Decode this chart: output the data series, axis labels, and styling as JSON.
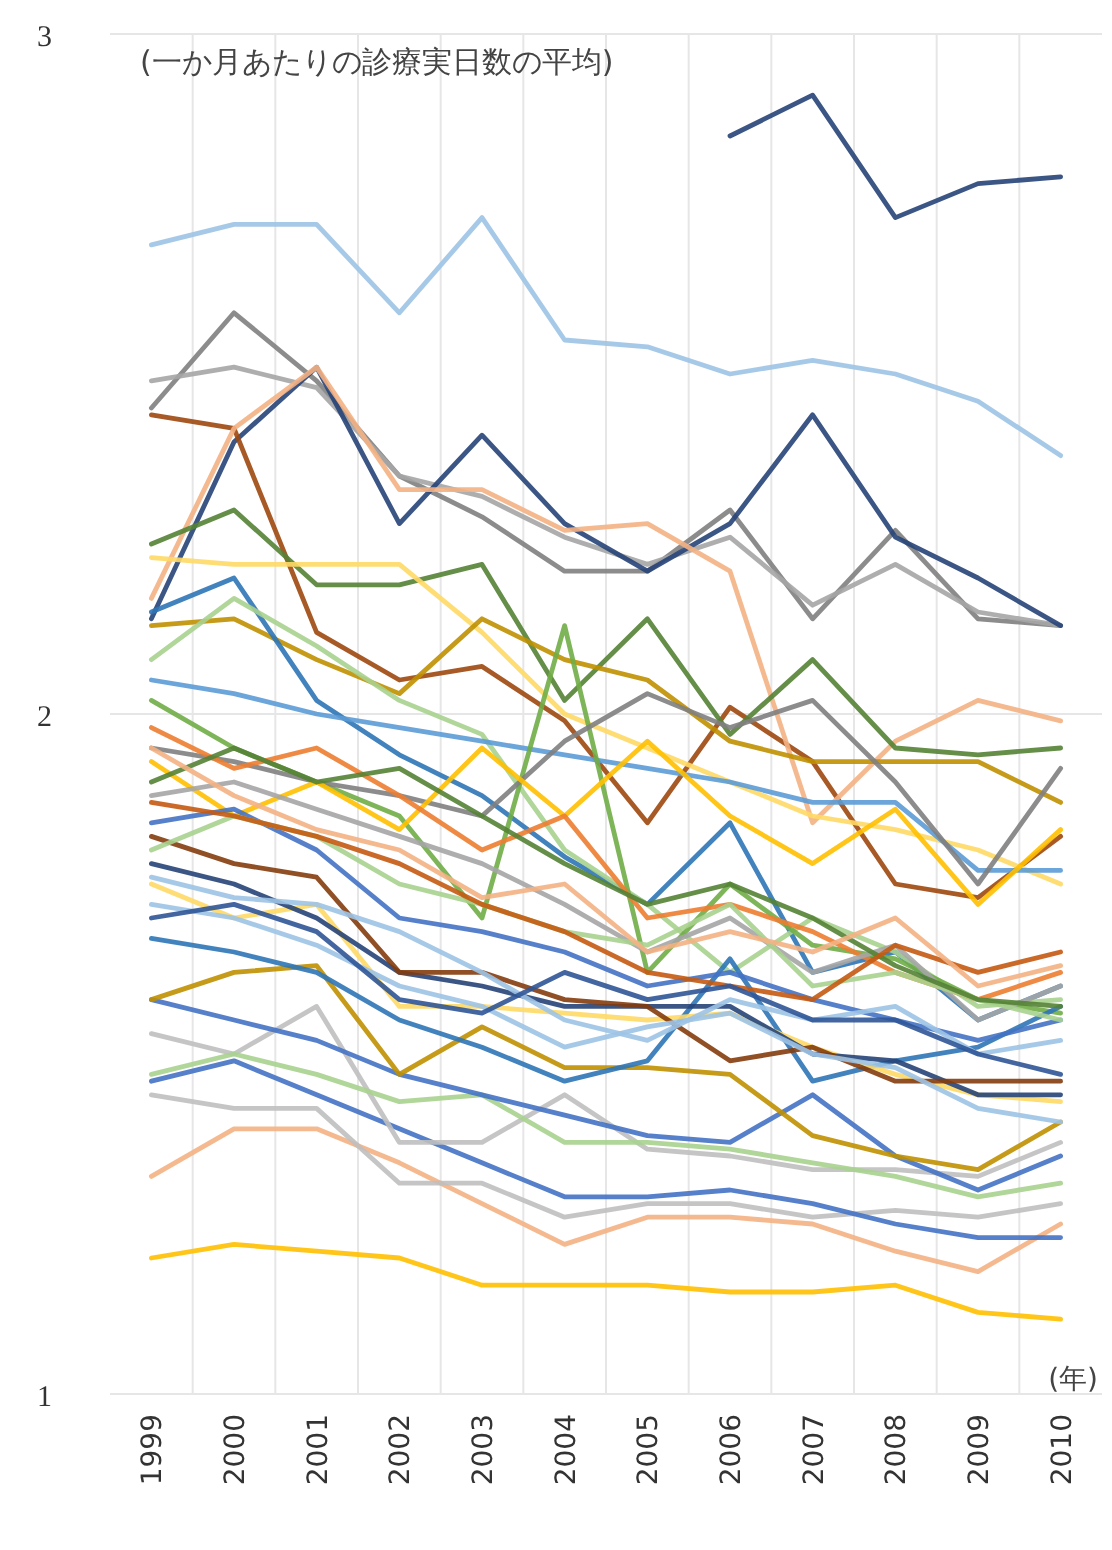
{
  "chart_data": {
    "type": "line",
    "annotations": [
      "(一か月あたりの診療実日数の平均)",
      "(年)"
    ],
    "categories": [
      "1999",
      "2000",
      "2001",
      "2002",
      "2003",
      "2004",
      "2005",
      "2006",
      "2007",
      "2008",
      "2009",
      "2010"
    ],
    "ylim": [
      1,
      3
    ],
    "yticks": [
      1,
      2,
      3
    ],
    "grid": true,
    "marker": "none",
    "line_style": "solid",
    "series": [
      {
        "color": "#264478",
        "values": [
          null,
          null,
          null,
          null,
          null,
          null,
          null,
          2.85,
          2.91,
          2.73,
          2.78,
          2.79
        ]
      },
      {
        "color": "#9DC3E6",
        "values": [
          2.69,
          2.72,
          2.72,
          2.59,
          2.73,
          2.55,
          2.54,
          2.5,
          2.52,
          2.5,
          2.46,
          2.38
        ]
      },
      {
        "color": "#7F7F7F",
        "values": [
          2.45,
          2.59,
          2.49,
          2.35,
          2.29,
          2.21,
          2.21,
          2.3,
          2.14,
          2.27,
          2.14,
          2.13
        ]
      },
      {
        "color": "#A5A5A5",
        "values": [
          2.49,
          2.51,
          2.48,
          2.35,
          2.32,
          2.26,
          2.22,
          2.26,
          2.16,
          2.22,
          2.15,
          2.13
        ]
      },
      {
        "color": "#264478",
        "values": [
          2.14,
          2.4,
          2.51,
          2.28,
          2.41,
          2.28,
          2.21,
          2.28,
          2.44,
          2.26,
          2.2,
          2.13
        ]
      },
      {
        "color": "#9E480E",
        "values": [
          2.44,
          2.42,
          2.12,
          2.05,
          2.07,
          1.99,
          1.84,
          2.01,
          1.93,
          1.75,
          1.73,
          1.82
        ]
      },
      {
        "color": "#F4B183",
        "values": [
          2.17,
          2.42,
          2.51,
          2.33,
          2.33,
          2.27,
          2.28,
          2.21,
          1.84,
          1.96,
          2.02,
          1.99
        ]
      },
      {
        "color": "#548235",
        "values": [
          2.25,
          2.3,
          2.19,
          2.19,
          2.22,
          2.02,
          2.14,
          1.97,
          2.08,
          1.95,
          1.94,
          1.95
        ]
      },
      {
        "color": "#FFD966",
        "values": [
          2.23,
          2.22,
          2.22,
          2.22,
          2.12,
          2.0,
          1.95,
          1.9,
          1.85,
          1.83,
          1.8,
          1.75
        ]
      },
      {
        "color": "#BF9000",
        "values": [
          2.13,
          2.14,
          2.08,
          2.03,
          2.14,
          2.08,
          2.05,
          1.96,
          1.93,
          1.93,
          1.93,
          1.87
        ]
      },
      {
        "color": "#2E75B6",
        "values": [
          2.15,
          2.2,
          2.02,
          1.94,
          1.88,
          1.79,
          1.72,
          1.84,
          1.62,
          1.65,
          1.55,
          1.6
        ]
      },
      {
        "color": "#A9D18E",
        "values": [
          2.08,
          2.17,
          2.1,
          2.02,
          1.97,
          1.8,
          1.72,
          1.62,
          1.7,
          1.65,
          1.57,
          1.58
        ]
      },
      {
        "color": "#5B9BD5",
        "values": [
          2.05,
          2.03,
          2.0,
          1.98,
          1.96,
          1.94,
          1.92,
          1.9,
          1.87,
          1.87,
          1.77,
          1.77
        ]
      },
      {
        "color": "#70AD47",
        "values": [
          2.02,
          1.95,
          1.9,
          1.85,
          1.7,
          2.13,
          1.62,
          1.75,
          1.66,
          1.64,
          1.58,
          1.56
        ]
      },
      {
        "color": "#7F7F7F",
        "values": [
          1.95,
          1.93,
          1.9,
          1.88,
          1.85,
          1.96,
          2.03,
          1.98,
          2.02,
          1.9,
          1.75,
          1.92
        ]
      },
      {
        "color": "#FFC000",
        "values": [
          1.93,
          1.85,
          1.9,
          1.83,
          1.95,
          1.85,
          1.96,
          1.85,
          1.78,
          1.86,
          1.72,
          1.83
        ]
      },
      {
        "color": "#FFC000",
        "values": [
          1.2,
          1.22,
          1.21,
          1.2,
          1.16,
          1.16,
          1.16,
          1.15,
          1.15,
          1.16,
          1.12,
          1.11
        ]
      },
      {
        "color": "#F4B183",
        "values": [
          1.32,
          1.39,
          1.39,
          1.34,
          1.28,
          1.22,
          1.26,
          1.26,
          1.25,
          1.21,
          1.18,
          1.25
        ]
      },
      {
        "color": "#BFBFBF",
        "values": [
          1.44,
          1.42,
          1.42,
          1.31,
          1.31,
          1.26,
          1.28,
          1.28,
          1.26,
          1.27,
          1.26,
          1.28
        ]
      },
      {
        "color": "#4472C4",
        "values": [
          1.46,
          1.49,
          1.44,
          1.39,
          1.34,
          1.29,
          1.29,
          1.3,
          1.28,
          1.25,
          1.23,
          1.23
        ]
      },
      {
        "color": "#BFBFBF",
        "values": [
          1.53,
          1.5,
          1.57,
          1.37,
          1.37,
          1.44,
          1.36,
          1.35,
          1.33,
          1.33,
          1.32,
          1.37
        ]
      },
      {
        "color": "#A9D18E",
        "values": [
          1.47,
          1.5,
          1.47,
          1.43,
          1.44,
          1.37,
          1.37,
          1.36,
          1.34,
          1.32,
          1.29,
          1.31
        ]
      },
      {
        "color": "#4472C4",
        "values": [
          1.58,
          1.55,
          1.52,
          1.47,
          1.44,
          1.41,
          1.38,
          1.37,
          1.44,
          1.35,
          1.3,
          1.35
        ]
      },
      {
        "color": "#BF9000",
        "values": [
          1.58,
          1.62,
          1.63,
          1.47,
          1.54,
          1.48,
          1.48,
          1.47,
          1.38,
          1.35,
          1.33,
          1.4
        ]
      },
      {
        "color": "#2E75B6",
        "values": [
          1.67,
          1.65,
          1.62,
          1.55,
          1.51,
          1.46,
          1.49,
          1.64,
          1.46,
          1.49,
          1.51,
          1.57
        ]
      },
      {
        "color": "#FFD966",
        "values": [
          1.75,
          1.7,
          1.72,
          1.57,
          1.57,
          1.56,
          1.55,
          1.56,
          1.51,
          1.47,
          1.44,
          1.43
        ]
      },
      {
        "color": "#264478",
        "values": [
          1.78,
          1.75,
          1.7,
          1.62,
          1.6,
          1.57,
          1.57,
          1.57,
          1.5,
          1.49,
          1.44,
          1.44
        ]
      },
      {
        "color": "#843C0C",
        "values": [
          1.82,
          1.78,
          1.76,
          1.62,
          1.62,
          1.58,
          1.57,
          1.49,
          1.51,
          1.46,
          1.46,
          1.46
        ]
      },
      {
        "color": "#9DC3E6",
        "values": [
          1.72,
          1.7,
          1.66,
          1.6,
          1.57,
          1.51,
          1.54,
          1.56,
          1.5,
          1.48,
          1.42,
          1.4
        ]
      },
      {
        "color": "#4472C4",
        "values": [
          1.84,
          1.86,
          1.8,
          1.7,
          1.68,
          1.65,
          1.6,
          1.62,
          1.58,
          1.55,
          1.52,
          1.55
        ]
      },
      {
        "color": "#ED7D31",
        "values": [
          1.98,
          1.92,
          1.95,
          1.88,
          1.8,
          1.85,
          1.7,
          1.72,
          1.68,
          1.62,
          1.58,
          1.62
        ]
      },
      {
        "color": "#A5A5A5",
        "values": [
          1.88,
          1.9,
          1.86,
          1.82,
          1.78,
          1.72,
          1.65,
          1.7,
          1.62,
          1.66,
          1.55,
          1.6
        ]
      },
      {
        "color": "#A9D18E",
        "values": [
          1.8,
          1.85,
          1.82,
          1.75,
          1.72,
          1.68,
          1.66,
          1.72,
          1.6,
          1.62,
          1.58,
          1.55
        ]
      },
      {
        "color": "#9DC3E6",
        "values": [
          1.76,
          1.73,
          1.72,
          1.68,
          1.62,
          1.55,
          1.52,
          1.58,
          1.55,
          1.57,
          1.5,
          1.52
        ]
      },
      {
        "color": "#548235",
        "values": [
          1.9,
          1.95,
          1.9,
          1.92,
          1.85,
          1.78,
          1.72,
          1.75,
          1.7,
          1.63,
          1.58,
          1.57
        ]
      },
      {
        "color": "#C55A11",
        "values": [
          1.87,
          1.85,
          1.82,
          1.78,
          1.72,
          1.68,
          1.62,
          1.6,
          1.58,
          1.66,
          1.62,
          1.65
        ]
      },
      {
        "color": "#F4B183",
        "values": [
          1.95,
          1.88,
          1.83,
          1.8,
          1.73,
          1.75,
          1.65,
          1.68,
          1.65,
          1.7,
          1.6,
          1.63
        ]
      },
      {
        "color": "#2F5597",
        "values": [
          1.7,
          1.72,
          1.68,
          1.58,
          1.56,
          1.62,
          1.58,
          1.6,
          1.55,
          1.55,
          1.5,
          1.47
        ]
      }
    ]
  }
}
